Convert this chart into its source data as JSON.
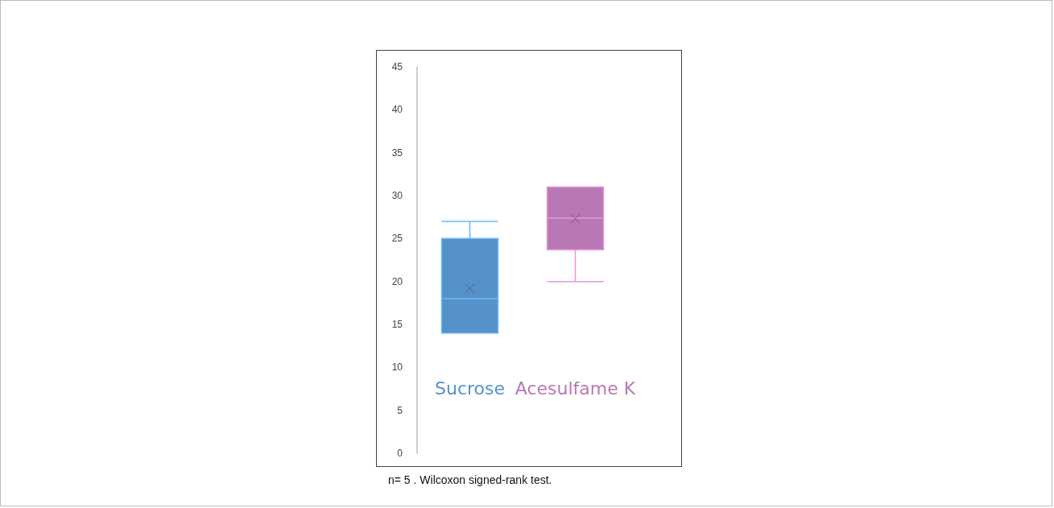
{
  "chart_data": {
    "type": "box",
    "categories": [
      "Sucrose",
      "Acesulfame K"
    ],
    "boxes": [
      {
        "low": 14,
        "q1": 14,
        "median": 18,
        "q3": 25,
        "high": 27,
        "mean": 19.2
      },
      {
        "low": 20,
        "q1": 23.7,
        "median": 27.4,
        "q3": 31,
        "high": 31,
        "mean": 27.3
      }
    ],
    "colors": [
      "#5592c9",
      "#b878b3"
    ],
    "ylim": [
      0,
      45
    ],
    "yticks": [
      0,
      5,
      10,
      15,
      20,
      25,
      30,
      35,
      40,
      45
    ],
    "grid": false,
    "annotations": [
      "n= 5 . Wilcoxon signed-rank test."
    ]
  }
}
